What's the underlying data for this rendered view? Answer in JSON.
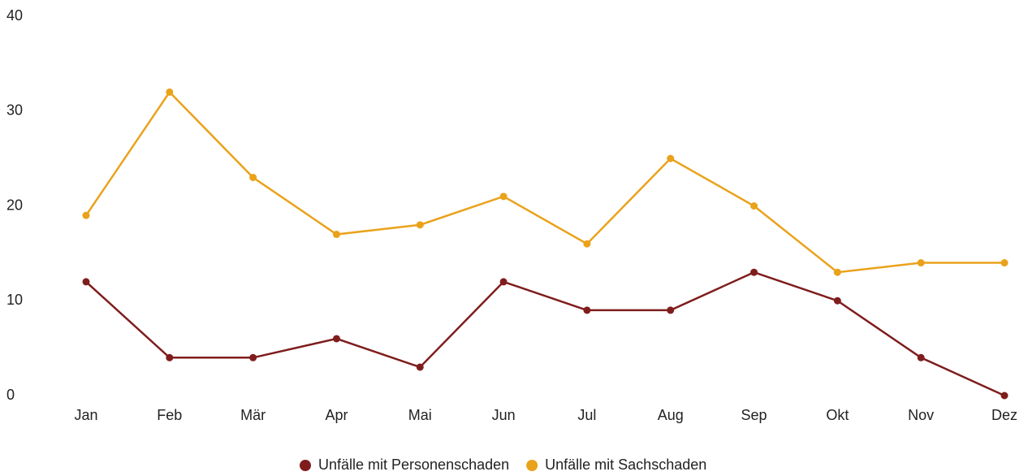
{
  "chart_data": {
    "type": "line",
    "categories": [
      "Jan",
      "Feb",
      "Mär",
      "Apr",
      "Mai",
      "Jun",
      "Jul",
      "Aug",
      "Sep",
      "Okt",
      "Nov",
      "Dez"
    ],
    "series": [
      {
        "name": "Unfälle mit Personenschaden",
        "color": "#7f1d1d",
        "values": [
          12,
          4,
          4,
          6,
          3,
          12,
          9,
          9,
          13,
          10,
          4,
          0
        ]
      },
      {
        "name": "Unfälle mit Sachschaden",
        "color": "#eaa21b",
        "values": [
          19,
          32,
          23,
          17,
          18,
          21,
          16,
          25,
          20,
          13,
          14,
          14
        ]
      }
    ],
    "ylim": [
      0,
      40
    ],
    "yticks": [
      0,
      10,
      20,
      30,
      40
    ],
    "grid": false,
    "legend": "bottom"
  }
}
